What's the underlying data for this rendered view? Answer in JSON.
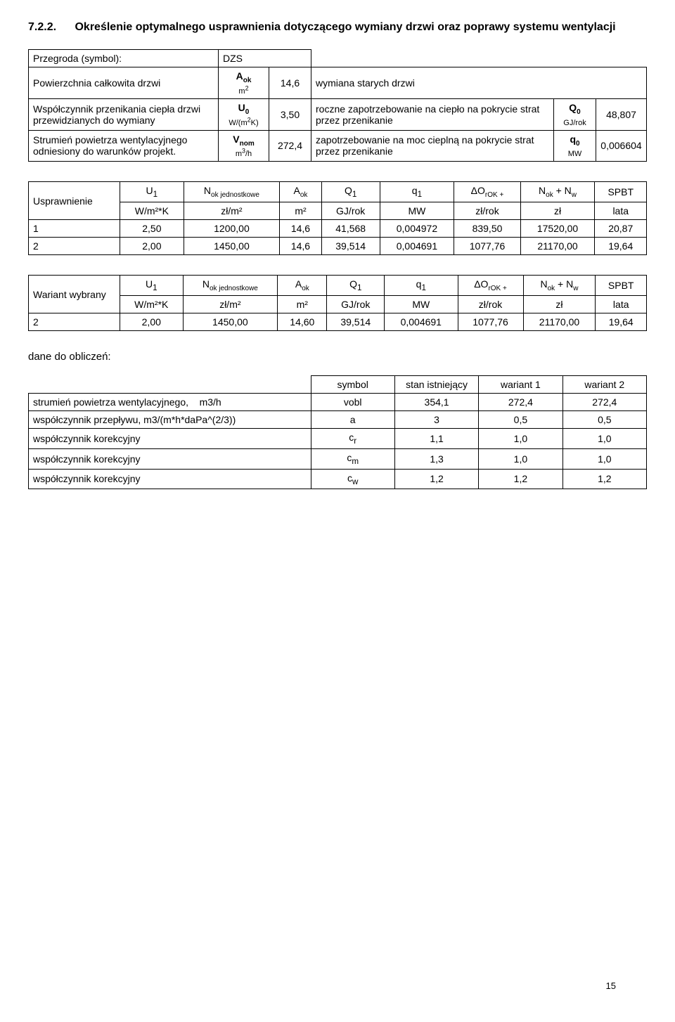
{
  "title_num": "7.2.2.",
  "title_text": "Określenie optymalnego usprawnienia dotyczącego wymiany drzwi oraz poprawy systemu wentylacji",
  "t1": {
    "r1": {
      "label": "Przegroda (symbol):",
      "val": "DZS"
    },
    "r2": {
      "label": "Powierzchnia całkowita drzwi",
      "sym": "A",
      "symsub": "ok",
      "unit": "m",
      "unitsup": "2",
      "v1": "14,6",
      "desc": "wymiana starych drzwi"
    },
    "r3": {
      "label": "Współczynnik przenikania ciepła drzwi przewidzianych do wymiany",
      "sym": "U",
      "symsub": "0",
      "unit": "W/(m",
      "unitsup": "2",
      "unit2": "K)",
      "v1": "3,50",
      "desc": "roczne zapotrzebowanie na ciepło na pokrycie strat przez przenikanie",
      "s2": "Q",
      "s2sub": "0",
      "u2": "GJ/rok",
      "v2": "48,807"
    },
    "r4": {
      "label": "Strumień powietrza wentylacyjnego odniesiony do warunków projekt.",
      "sym": "V",
      "symsub": "nom",
      "unit": "m",
      "unitsup": "3",
      "unit2": "/h",
      "v1": "272,4",
      "desc": "zapotrzebowanie na moc cieplną na pokrycie strat przez przenikanie",
      "s2": "q",
      "s2sub": "0",
      "u2": "MW",
      "v2": "0,006604"
    }
  },
  "t2": {
    "label": "Usprawnienie",
    "h1": [
      "U₁",
      "N",
      "A",
      "Q₁",
      "q₁",
      "ΔO",
      "N",
      "SPBT"
    ],
    "h1_sub": [
      "",
      "ok jednostkowe",
      "ok",
      "",
      "",
      "rOK +",
      "ok",
      ""
    ],
    "h1_plus": " + N",
    "h1_w": "w",
    "h2": [
      "W/m²*K",
      "zł/m²",
      "m²",
      "GJ/rok",
      "MW",
      "zł/rok",
      "zł",
      "lata"
    ],
    "rows": [
      [
        "1",
        "2,50",
        "1200,00",
        "14,6",
        "41,568",
        "0,004972",
        "839,50",
        "17520,00",
        "20,87"
      ],
      [
        "2",
        "2,00",
        "1450,00",
        "14,6",
        "39,514",
        "0,004691",
        "1077,76",
        "21170,00",
        "19,64"
      ]
    ]
  },
  "t3": {
    "label": "Wariant wybrany",
    "rows": [
      [
        "2",
        "2,00",
        "1450,00",
        "14,60",
        "39,514",
        "0,004691",
        "1077,76",
        "21170,00",
        "19,64"
      ]
    ]
  },
  "section": "dane do obliczeń:",
  "t4": {
    "hcols": [
      "symbol",
      "stan istniejący",
      "wariant 1",
      "wariant 2"
    ],
    "rows": [
      {
        "label": "strumień powietrza wentylacyjnego,",
        "label2": "m3/h",
        "sym": "vobl",
        "v": [
          "354,1",
          "272,4",
          "272,4"
        ]
      },
      {
        "label": "współczynnik przepływu, m3/(m*h*daPa^(2/3))",
        "sym": "a",
        "v": [
          "3",
          "0,5",
          "0,5"
        ]
      },
      {
        "label": "współczynnik korekcyjny",
        "sym": "c",
        "symsub": "r",
        "v": [
          "1,1",
          "1,0",
          "1,0"
        ]
      },
      {
        "label": "współczynnik korekcyjny",
        "sym": "c",
        "symsub": "m",
        "v": [
          "1,3",
          "1,0",
          "1,0"
        ]
      },
      {
        "label": "współczynnik korekcyjny",
        "sym": "c",
        "symsub": "w",
        "v": [
          "1,2",
          "1,2",
          "1,2"
        ]
      }
    ]
  },
  "page": "15"
}
